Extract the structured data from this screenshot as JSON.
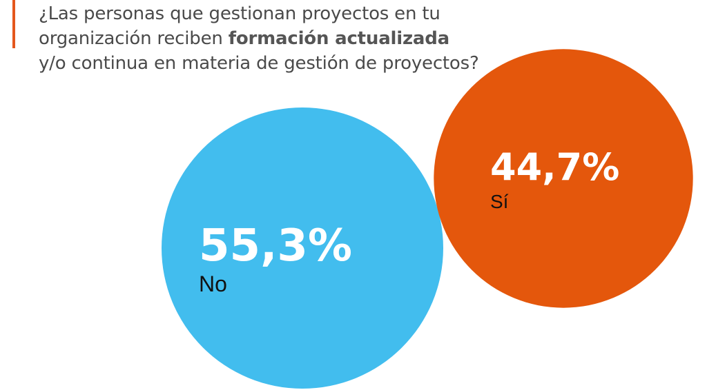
{
  "question": {
    "part1": "¿Las personas que gestionan proyectos en tu organización reciben ",
    "bold": "formación actualizada",
    "part2": " y/o continua en materia de gestión de proyectos?"
  },
  "colors": {
    "accent": "#e4571d",
    "no": "#42bdee",
    "si": "#e4570c"
  },
  "chart_data": {
    "type": "pie",
    "title": "¿Las personas que gestionan proyectos en tu organización reciben formación actualizada y/o continua en materia de gestión de proyectos?",
    "series": [
      {
        "name": "No",
        "value": 55.3,
        "value_label": "55,3%",
        "color": "#42bdee"
      },
      {
        "name": "Sí",
        "value": 44.7,
        "value_label": "44,7%",
        "color": "#e4570c"
      }
    ]
  }
}
